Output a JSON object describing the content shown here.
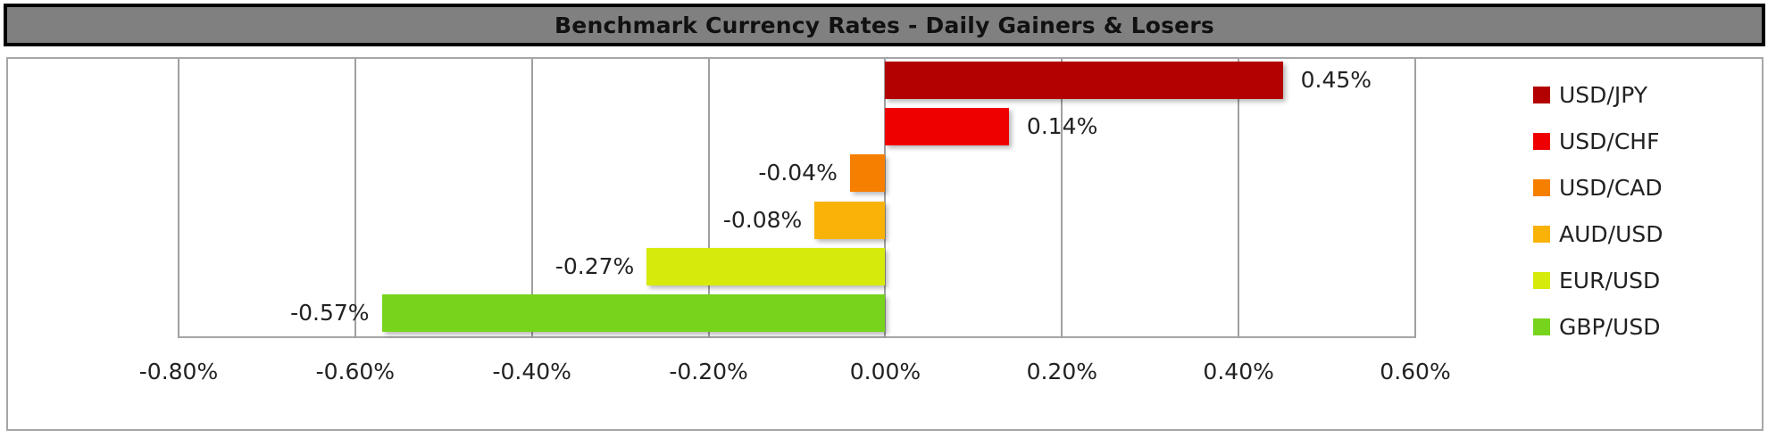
{
  "title": "Benchmark Currency Rates - Daily Gainers & Losers",
  "chart_data": {
    "type": "bar",
    "orientation": "horizontal",
    "title": "Benchmark Currency Rates - Daily Gainers & Losers",
    "xlabel": "",
    "ylabel": "",
    "categories": [
      "USD/JPY",
      "USD/CHF",
      "USD/CAD",
      "AUD/USD",
      "EUR/USD",
      "GBP/USD"
    ],
    "values": [
      0.45,
      0.14,
      -0.04,
      -0.08,
      -0.27,
      -0.57
    ],
    "value_labels": [
      "0.45%",
      "0.14%",
      "-0.04%",
      "-0.08%",
      "-0.27%",
      "-0.57%"
    ],
    "colors": [
      "#B30000",
      "#EE0000",
      "#F77F00",
      "#F9B208",
      "#D6EB0B",
      "#77D41C"
    ],
    "xlim": [
      -0.8,
      0.6
    ],
    "unit": "%",
    "x_ticks": [
      "-0.80%",
      "-0.60%",
      "-0.40%",
      "-0.20%",
      "0.00%",
      "0.20%",
      "0.40%",
      "0.60%"
    ],
    "grid": "vertical",
    "legend_position": "right"
  },
  "legend": [
    {
      "label": "USD/JPY",
      "color": "#B30000"
    },
    {
      "label": "USD/CHF",
      "color": "#EE0000"
    },
    {
      "label": "USD/CAD",
      "color": "#F77F00"
    },
    {
      "label": "AUD/USD",
      "color": "#F9B208"
    },
    {
      "label": "EUR/USD",
      "color": "#D6EB0B"
    },
    {
      "label": "GBP/USD",
      "color": "#77D41C"
    }
  ]
}
